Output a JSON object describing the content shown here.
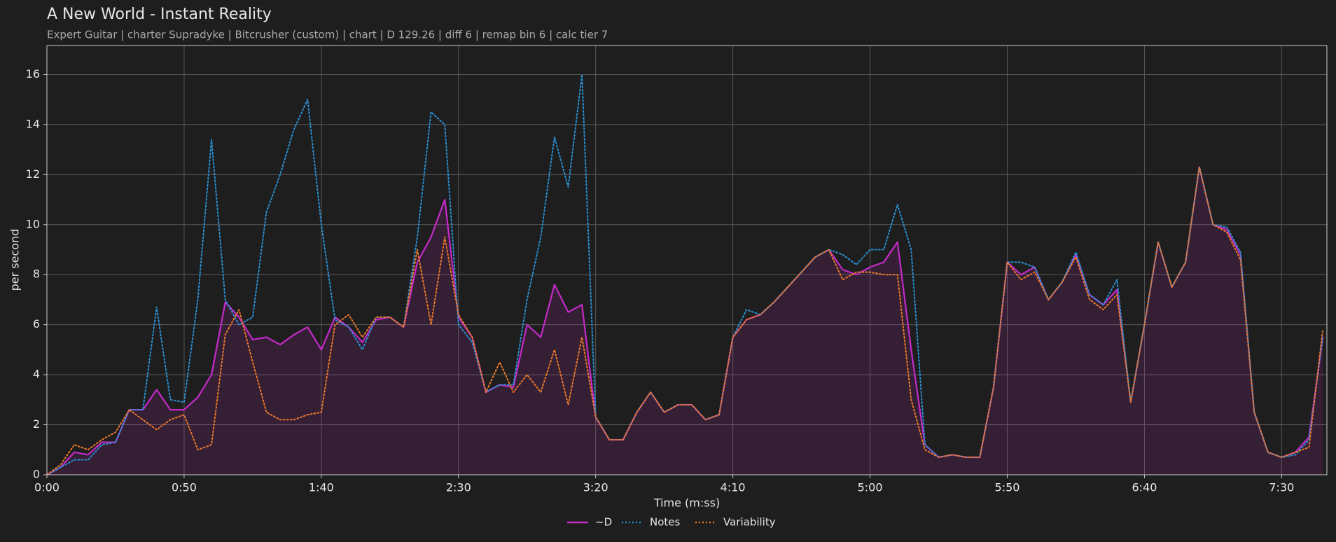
{
  "chart_data": {
    "type": "line",
    "title": "A New World - Instant Reality",
    "subtitle": "Expert Guitar  |  charter Supradyke  |  Bitcrusher (custom)  |  chart  |  D 129.26  |  diff 6  |  remap bin 6  |  calc tier 7",
    "x_label": "Time (m:ss)",
    "y_label": "per second",
    "x": [
      0,
      5,
      10,
      15,
      20,
      25,
      30,
      35,
      40,
      45,
      50,
      55,
      60,
      65,
      70,
      75,
      80,
      85,
      90,
      95,
      100,
      105,
      110,
      115,
      120,
      125,
      130,
      135,
      140,
      145,
      150,
      155,
      160,
      165,
      170,
      175,
      180,
      185,
      190,
      195,
      200,
      205,
      210,
      215,
      220,
      225,
      230,
      235,
      240,
      245,
      250,
      255,
      260,
      265,
      270,
      275,
      280,
      285,
      290,
      295,
      300,
      305,
      310,
      315,
      320,
      325,
      330,
      335,
      340,
      345,
      350,
      355,
      360,
      365,
      370,
      375,
      380,
      385,
      390,
      395,
      400,
      405,
      410,
      415,
      420,
      425,
      430,
      435,
      440,
      445,
      450,
      455,
      460,
      465
    ],
    "series": [
      {
        "name": "~D",
        "color": "#c42ac8",
        "style": "solid",
        "fill": true,
        "values": [
          0,
          0.3,
          0.9,
          0.8,
          1.3,
          1.3,
          2.6,
          2.6,
          3.4,
          2.6,
          2.6,
          3.1,
          4.0,
          6.9,
          6.3,
          5.4,
          5.5,
          5.2,
          5.6,
          5.9,
          5.0,
          6.3,
          5.9,
          5.3,
          6.2,
          6.3,
          5.9,
          8.5,
          9.5,
          11.0,
          6.3,
          5.5,
          3.3,
          3.6,
          3.5,
          6.0,
          5.5,
          7.6,
          6.5,
          6.8,
          2.3,
          1.4,
          1.4,
          2.5,
          3.3,
          2.5,
          2.8,
          2.8,
          2.2,
          2.4,
          5.5,
          6.2,
          6.4,
          6.9,
          7.5,
          8.1,
          8.7,
          9.0,
          8.2,
          8.0,
          8.3,
          8.5,
          9.3,
          5.0,
          1.2,
          0.7,
          0.8,
          0.7,
          0.7,
          3.5,
          8.5,
          8.0,
          8.3,
          7.0,
          7.7,
          8.8,
          7.2,
          6.8,
          7.4,
          2.9,
          6.0,
          9.3,
          7.5,
          8.5,
          12.3,
          10.0,
          9.8,
          8.8,
          2.5,
          0.9,
          0.7,
          0.9,
          1.5,
          5.5
        ]
      },
      {
        "name": "Notes",
        "color": "#2a8fd0",
        "style": "dotted",
        "values": [
          0,
          0.3,
          0.6,
          0.6,
          1.2,
          1.3,
          2.6,
          2.6,
          6.7,
          3.0,
          2.9,
          7.0,
          13.4,
          7.0,
          6.0,
          6.3,
          10.5,
          12.0,
          13.8,
          15.0,
          10.0,
          6.2,
          5.9,
          5.0,
          6.3,
          6.3,
          5.9,
          9.5,
          14.5,
          14.0,
          6.0,
          5.3,
          3.3,
          3.6,
          3.6,
          7.0,
          9.5,
          13.5,
          11.5,
          16.0,
          2.3,
          1.4,
          1.4,
          2.5,
          3.3,
          2.5,
          2.8,
          2.8,
          2.2,
          2.4,
          5.5,
          6.6,
          6.4,
          6.9,
          7.5,
          8.1,
          8.7,
          9.0,
          8.8,
          8.4,
          9.0,
          9.0,
          10.8,
          9.0,
          1.2,
          0.7,
          0.8,
          0.7,
          0.7,
          3.5,
          8.5,
          8.5,
          8.3,
          7.0,
          7.7,
          8.9,
          7.2,
          6.8,
          7.8,
          2.9,
          6.0,
          9.3,
          7.5,
          8.5,
          12.3,
          10.0,
          9.9,
          8.9,
          2.5,
          0.9,
          0.7,
          0.8,
          1.4,
          5.5
        ]
      },
      {
        "name": "Variability",
        "color": "#e8782a",
        "style": "dotted",
        "values": [
          0,
          0.4,
          1.2,
          1.0,
          1.4,
          1.7,
          2.6,
          2.2,
          1.8,
          2.2,
          2.4,
          1.0,
          1.2,
          5.6,
          6.6,
          4.5,
          2.5,
          2.2,
          2.2,
          2.4,
          2.5,
          6.0,
          6.4,
          5.5,
          6.3,
          6.3,
          5.9,
          9.0,
          6.0,
          9.5,
          6.4,
          5.5,
          3.3,
          4.5,
          3.3,
          4.0,
          3.3,
          5.0,
          2.8,
          5.5,
          2.3,
          1.4,
          1.4,
          2.5,
          3.3,
          2.5,
          2.8,
          2.8,
          2.2,
          2.4,
          5.5,
          6.2,
          6.4,
          6.9,
          7.5,
          8.1,
          8.7,
          9.0,
          7.8,
          8.1,
          8.1,
          8.0,
          8.0,
          3.0,
          1.0,
          0.7,
          0.8,
          0.7,
          0.7,
          3.5,
          8.5,
          7.8,
          8.1,
          7.0,
          7.7,
          8.7,
          7.0,
          6.6,
          7.2,
          2.9,
          6.0,
          9.3,
          7.5,
          8.5,
          12.3,
          10.0,
          9.7,
          8.6,
          2.5,
          0.9,
          0.7,
          0.9,
          1.1,
          5.8
        ]
      }
    ],
    "xlim": [
      0,
      466.5
    ],
    "xticks": [
      {
        "value": 0,
        "label": "0:00"
      },
      {
        "value": 50,
        "label": "0:50"
      },
      {
        "value": 100,
        "label": "1:40"
      },
      {
        "value": 150,
        "label": "2:30"
      },
      {
        "value": 200,
        "label": "3:20"
      },
      {
        "value": 250,
        "label": "4:10"
      },
      {
        "value": 300,
        "label": "5:00"
      },
      {
        "value": 350,
        "label": "5:50"
      },
      {
        "value": 400,
        "label": "6:40"
      },
      {
        "value": 450,
        "label": "7:30"
      }
    ],
    "ylim": [
      0,
      17.16
    ],
    "yticks": [
      0,
      2,
      4,
      6,
      8,
      10,
      12,
      14,
      16
    ],
    "grid": true,
    "legend": "bottom"
  }
}
